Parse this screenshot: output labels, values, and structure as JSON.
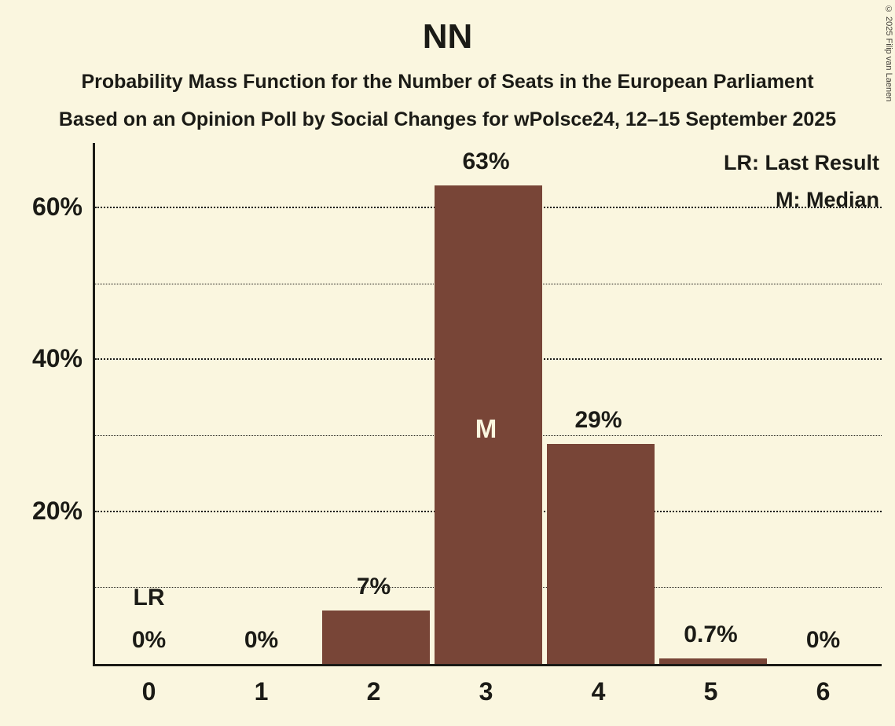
{
  "page": {
    "title": "NN",
    "subtitle1": "Probability Mass Function for the Number of Seats in the European Parliament",
    "subtitle2": "Based on an Opinion Poll by Social Changes for wPolsce24, 12–15 September 2025",
    "copyright": "© 2025 Filip van Laenen"
  },
  "legend": {
    "lr": "LR: Last Result",
    "m": "M: Median"
  },
  "colors": {
    "background": "#FAF6DF",
    "bar": "#784537",
    "text": "#1B1B16"
  },
  "chart_data": {
    "type": "bar",
    "title": "NN",
    "categories": [
      "0",
      "1",
      "2",
      "3",
      "4",
      "5",
      "6"
    ],
    "values": [
      0,
      0,
      7,
      63,
      29,
      0.7,
      0
    ],
    "labels": [
      "0%",
      "0%",
      "7%",
      "63%",
      "29%",
      "0.7%",
      "0%"
    ],
    "xlabel": "",
    "ylabel": "",
    "ylim": [
      0,
      68.6
    ],
    "yticks": [
      20,
      40,
      60
    ],
    "ytick_labels": [
      "20%",
      "40%",
      "60%"
    ],
    "gridlines": [
      10,
      20,
      30,
      40,
      50,
      60
    ],
    "grid": "dotted horizontal",
    "legend_position": "top-right",
    "median_category": "3",
    "median_marker": "M",
    "last_result_category": "0",
    "last_result_marker": "LR"
  }
}
